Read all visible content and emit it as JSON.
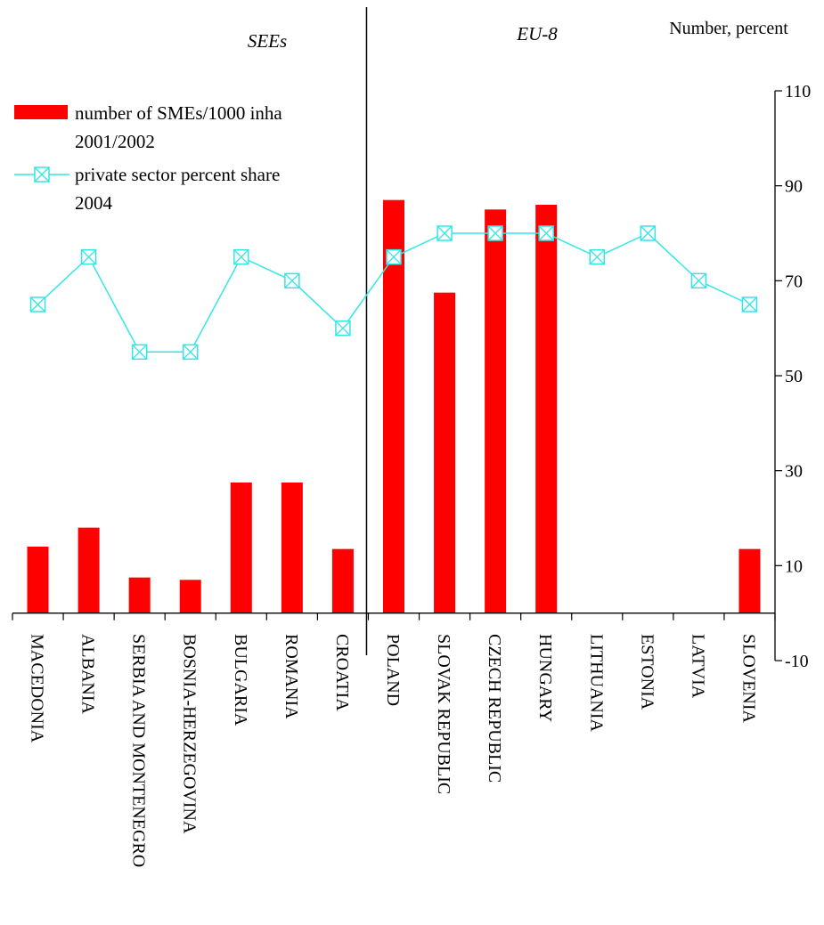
{
  "chart_data": {
    "type": "bar",
    "unit_label": "Number, percent",
    "regions": [
      {
        "label": "SEEs",
        "categories": [
          "MACEDONIA",
          "ALBANIA",
          "SERBIA AND MONTENEGRO",
          "BOSNIA-HERZEGOVINA",
          "BULGARIA",
          "ROMANIA",
          "CROATIA"
        ]
      },
      {
        "label": "EU-8",
        "categories": [
          "POLAND",
          "SLOVAK REPUBLIC",
          "CZECH REPUBLIC",
          "HUNGARY",
          "LITHUANIA",
          "ESTONIA",
          "LATVIA",
          "SLOVENIA"
        ]
      }
    ],
    "categories": [
      "MACEDONIA",
      "ALBANIA",
      "SERBIA AND MONTENEGRO",
      "BOSNIA-HERZEGOVINA",
      "BULGARIA",
      "ROMANIA",
      "CROATIA",
      "POLAND",
      "SLOVAK REPUBLIC",
      "CZECH REPUBLIC",
      "HUNGARY",
      "LITHUANIA",
      "ESTONIA",
      "LATVIA",
      "SLOVENIA"
    ],
    "series": [
      {
        "name": "number of SMEs/1000 inha 2001/2002",
        "legend_lines": [
          "number of SMEs/1000 inha",
          "2001/2002"
        ],
        "kind": "bar",
        "color": "#ff0000",
        "values": [
          14,
          18,
          7.5,
          7,
          27.5,
          27.5,
          13.5,
          87,
          67.5,
          85,
          86,
          null,
          null,
          null,
          13.5
        ]
      },
      {
        "name": "private sector percent share 2004",
        "legend_lines": [
          "private sector percent share",
          "2004"
        ],
        "kind": "line",
        "color": "#33e6e6",
        "marker": "square-x",
        "values": [
          65,
          75,
          55,
          55,
          75,
          70,
          60,
          75,
          80,
          80,
          80,
          75,
          80,
          70,
          65
        ]
      }
    ],
    "y_axis": {
      "position": "right",
      "ylim": [
        -10,
        110
      ],
      "ticks": [
        -10,
        10,
        30,
        50,
        70,
        90,
        110
      ],
      "labels": [
        "-10",
        "10",
        "30",
        "50",
        "70",
        "90",
        "110"
      ]
    },
    "grid": false,
    "legend_position": "top-left"
  }
}
